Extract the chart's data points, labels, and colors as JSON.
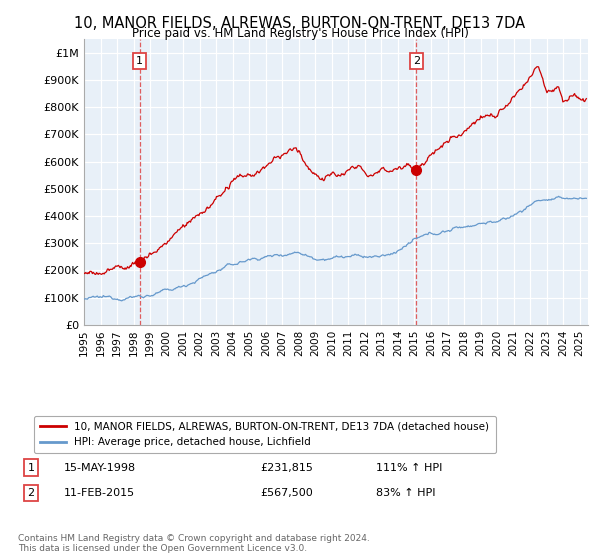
{
  "title": "10, MANOR FIELDS, ALREWAS, BURTON-ON-TRENT, DE13 7DA",
  "subtitle": "Price paid vs. HM Land Registry's House Price Index (HPI)",
  "xlim": [
    1995.0,
    2025.5
  ],
  "ylim": [
    0,
    1050000
  ],
  "yticks": [
    0,
    100000,
    200000,
    300000,
    400000,
    500000,
    600000,
    700000,
    800000,
    900000,
    1000000
  ],
  "ytick_labels": [
    "£0",
    "£100K",
    "£200K",
    "£300K",
    "£400K",
    "£500K",
    "£600K",
    "£700K",
    "£800K",
    "£900K",
    "£1M"
  ],
  "xticks": [
    1995,
    1996,
    1997,
    1998,
    1999,
    2000,
    2001,
    2002,
    2003,
    2004,
    2005,
    2006,
    2007,
    2008,
    2009,
    2010,
    2011,
    2012,
    2013,
    2014,
    2015,
    2016,
    2017,
    2018,
    2019,
    2020,
    2021,
    2022,
    2023,
    2024,
    2025
  ],
  "sale1_x": 1998.37,
  "sale1_y": 231815,
  "sale2_x": 2015.11,
  "sale2_y": 567500,
  "sale1_date": "15-MAY-1998",
  "sale1_price": "£231,815",
  "sale1_hpi": "111% ↑ HPI",
  "sale2_date": "11-FEB-2015",
  "sale2_price": "£567,500",
  "sale2_hpi": "83% ↑ HPI",
  "line_color_red": "#cc0000",
  "line_color_blue": "#6699cc",
  "vline_color": "#dd4444",
  "bg_color": "#ffffff",
  "chart_bg_color": "#e8f0f8",
  "grid_color": "#ffffff",
  "legend_label_red": "10, MANOR FIELDS, ALREWAS, BURTON-ON-TRENT, DE13 7DA (detached house)",
  "legend_label_blue": "HPI: Average price, detached house, Lichfield",
  "footer": "Contains HM Land Registry data © Crown copyright and database right 2024.\nThis data is licensed under the Open Government Licence v3.0."
}
